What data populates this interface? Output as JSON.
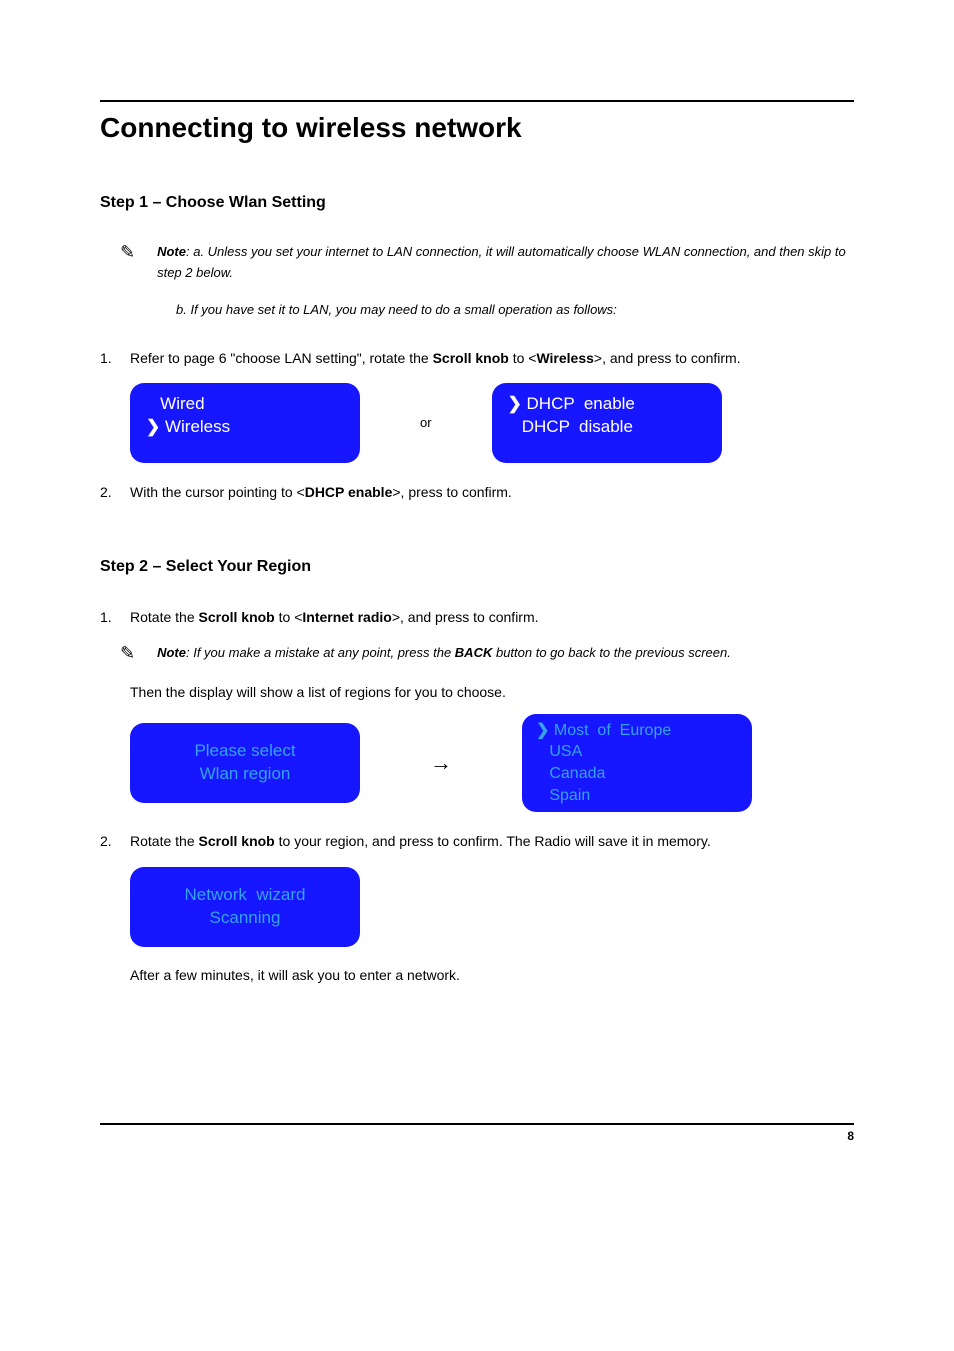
{
  "colors": {
    "lcd_bg": "#1717ff",
    "lcd_cyan": "#34a3e6",
    "lcd_white": "#ffffff",
    "text": "#000000"
  },
  "title": "Connecting to wireless network",
  "step1": {
    "heading": "Step 1 – Choose Wlan Setting",
    "note_label": "Note",
    "note_a": ": a. Unless you set your internet to LAN connection, it will  automatically choose WLAN connection, and then skip to step 2 below.",
    "note_b": "b. If you have set it to LAN, you may need to do a small operation as follows:",
    "item1_pre": "Refer to page 6 \"choose LAN setting\", rotate the ",
    "item1_scroll": "Scroll knob",
    "item1_mid": " to <",
    "item1_wireless": "Wireless",
    "item1_post": ">, and press to confirm.",
    "lcd1": {
      "line1": "Wired",
      "line2": "Wireless"
    },
    "or": "or",
    "lcd2": {
      "line1": "DHCP  enable",
      "line2": "DHCP  disable"
    },
    "item2_pre": "With the cursor pointing to <",
    "item2_dhcp": "DHCP enable",
    "item2_post": ">, press to confirm."
  },
  "step2": {
    "heading": " Step 2 – Select Your Region",
    "item1_pre": "Rotate the ",
    "item1_scroll": "Scroll knob",
    "item1_mid": " to <",
    "item1_ir": "Internet radio",
    "item1_post": ">, and press to confirm.",
    "note_label": "Note",
    "note_mid1": ": If you make a mistake at any point, press the ",
    "note_back": "BACK",
    "note_mid2": " button to go back to the previous screen.",
    "then_text": "Then the display will show a list of regions for you to choose.",
    "lcd3": {
      "line1": "Please select",
      "line2": "Wlan region"
    },
    "arrow": "→",
    "lcd4": {
      "line1": "Most  of  Europe",
      "line2": "USA",
      "line3": "Canada",
      "line4": "Spain"
    },
    "item2_pre": "Rotate the ",
    "item2_scroll": "Scroll knob",
    "item2_post": " to your region, and press to confirm. The Radio will save it in memory.",
    "lcd5": {
      "line1": "Network  wizard",
      "line2": "Scanning"
    },
    "after_text": "After a few minutes, it will ask you to enter a network."
  },
  "page_number": "8"
}
